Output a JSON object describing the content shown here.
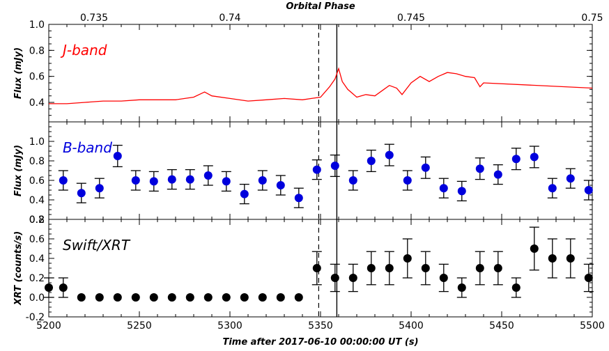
{
  "figure": {
    "top_axis_title": "Orbital Phase",
    "bottom_axis_title": "Time after 2017-06-10 00:00:00 UT (s)",
    "top_ticks": [
      "0.735",
      "0.74",
      "0.745",
      "0.75"
    ],
    "bottom_ticks": [
      "5200",
      "5250",
      "5300",
      "5350",
      "5400",
      "5450",
      "5500"
    ]
  },
  "chart_data": [
    {
      "type": "line",
      "panel_label": "J-band",
      "ylabel": "Flux (mJy)",
      "color": "#ff0000",
      "xlim": [
        5200,
        5500
      ],
      "ylim": [
        0.25,
        1.0
      ],
      "y_ticks": [
        "1.0",
        "0.8",
        "0.6",
        "0.4"
      ],
      "y_tick_values": [
        1.0,
        0.8,
        0.6,
        0.4
      ],
      "x": [
        5200,
        5210,
        5220,
        5230,
        5240,
        5250,
        5260,
        5270,
        5280,
        5286,
        5290,
        5300,
        5310,
        5320,
        5330,
        5340,
        5345,
        5350,
        5355,
        5358,
        5360,
        5362,
        5365,
        5370,
        5375,
        5380,
        5385,
        5388,
        5392,
        5395,
        5400,
        5405,
        5410,
        5415,
        5420,
        5425,
        5430,
        5435,
        5438,
        5440,
        5500
      ],
      "y": [
        0.39,
        0.39,
        0.4,
        0.41,
        0.41,
        0.42,
        0.42,
        0.42,
        0.44,
        0.48,
        0.45,
        0.43,
        0.41,
        0.42,
        0.43,
        0.42,
        0.43,
        0.44,
        0.52,
        0.58,
        0.66,
        0.56,
        0.5,
        0.44,
        0.46,
        0.45,
        0.5,
        0.53,
        0.51,
        0.46,
        0.55,
        0.6,
        0.56,
        0.6,
        0.63,
        0.62,
        0.6,
        0.59,
        0.52,
        0.55,
        0.51
      ]
    },
    {
      "type": "scatter",
      "panel_label": "B-band",
      "ylabel": "Flux (mJy)",
      "color": "#0000dd",
      "xlim": [
        5200,
        5500
      ],
      "ylim": [
        0.2,
        1.2
      ],
      "y_ticks": [
        "1.0",
        "0.8",
        "0.6",
        "0.4",
        "0.2"
      ],
      "y_tick_values": [
        1.0,
        0.8,
        0.6,
        0.4,
        0.2
      ],
      "x": [
        5208,
        5218,
        5228,
        5238,
        5248,
        5258,
        5268,
        5278,
        5288,
        5298,
        5308,
        5318,
        5328,
        5338,
        5348,
        5358,
        5368,
        5378,
        5388,
        5398,
        5408,
        5418,
        5428,
        5438,
        5448,
        5458,
        5468,
        5478,
        5488,
        5498
      ],
      "y": [
        0.6,
        0.47,
        0.52,
        0.85,
        0.6,
        0.59,
        0.61,
        0.61,
        0.65,
        0.59,
        0.46,
        0.6,
        0.55,
        0.42,
        0.71,
        0.75,
        0.6,
        0.8,
        0.86,
        0.6,
        0.73,
        0.52,
        0.49,
        0.72,
        0.66,
        0.82,
        0.84,
        0.52,
        0.62,
        0.5
      ],
      "err": [
        0.1,
        0.1,
        0.1,
        0.11,
        0.1,
        0.1,
        0.1,
        0.1,
        0.1,
        0.1,
        0.1,
        0.1,
        0.1,
        0.1,
        0.1,
        0.11,
        0.1,
        0.11,
        0.11,
        0.1,
        0.11,
        0.1,
        0.1,
        0.11,
        0.1,
        0.11,
        0.11,
        0.1,
        0.1,
        0.1
      ]
    },
    {
      "type": "scatter",
      "panel_label": "Swift/XRT",
      "ylabel": "XRT (counts/s)",
      "color": "#000000",
      "xlim": [
        5200,
        5500
      ],
      "ylim": [
        -0.2,
        0.8
      ],
      "y_ticks": [
        "0.8",
        "0.6",
        "0.4",
        "0.2",
        "0.0",
        "-0.2"
      ],
      "y_tick_values": [
        0.8,
        0.6,
        0.4,
        0.2,
        0.0,
        -0.2
      ],
      "x": [
        5200,
        5208,
        5218,
        5228,
        5238,
        5248,
        5258,
        5268,
        5278,
        5288,
        5298,
        5308,
        5318,
        5328,
        5338,
        5348,
        5358,
        5368,
        5378,
        5388,
        5398,
        5408,
        5418,
        5428,
        5438,
        5448,
        5458,
        5468,
        5478,
        5488,
        5498
      ],
      "y": [
        0.1,
        0.1,
        0.0,
        0.0,
        0.0,
        0.0,
        0.0,
        0.0,
        0.0,
        0.0,
        0.0,
        0.0,
        0.0,
        0.0,
        0.0,
        0.3,
        0.2,
        0.2,
        0.3,
        0.3,
        0.4,
        0.3,
        0.2,
        0.1,
        0.3,
        0.3,
        0.1,
        0.5,
        0.4,
        0.4,
        0.2
      ],
      "err": [
        0.1,
        0.1,
        0.0,
        0.0,
        0.0,
        0.0,
        0.0,
        0.0,
        0.0,
        0.0,
        0.0,
        0.0,
        0.0,
        0.0,
        0.0,
        0.17,
        0.14,
        0.14,
        0.17,
        0.17,
        0.2,
        0.17,
        0.14,
        0.1,
        0.17,
        0.17,
        0.1,
        0.22,
        0.2,
        0.2,
        0.14
      ]
    }
  ]
}
